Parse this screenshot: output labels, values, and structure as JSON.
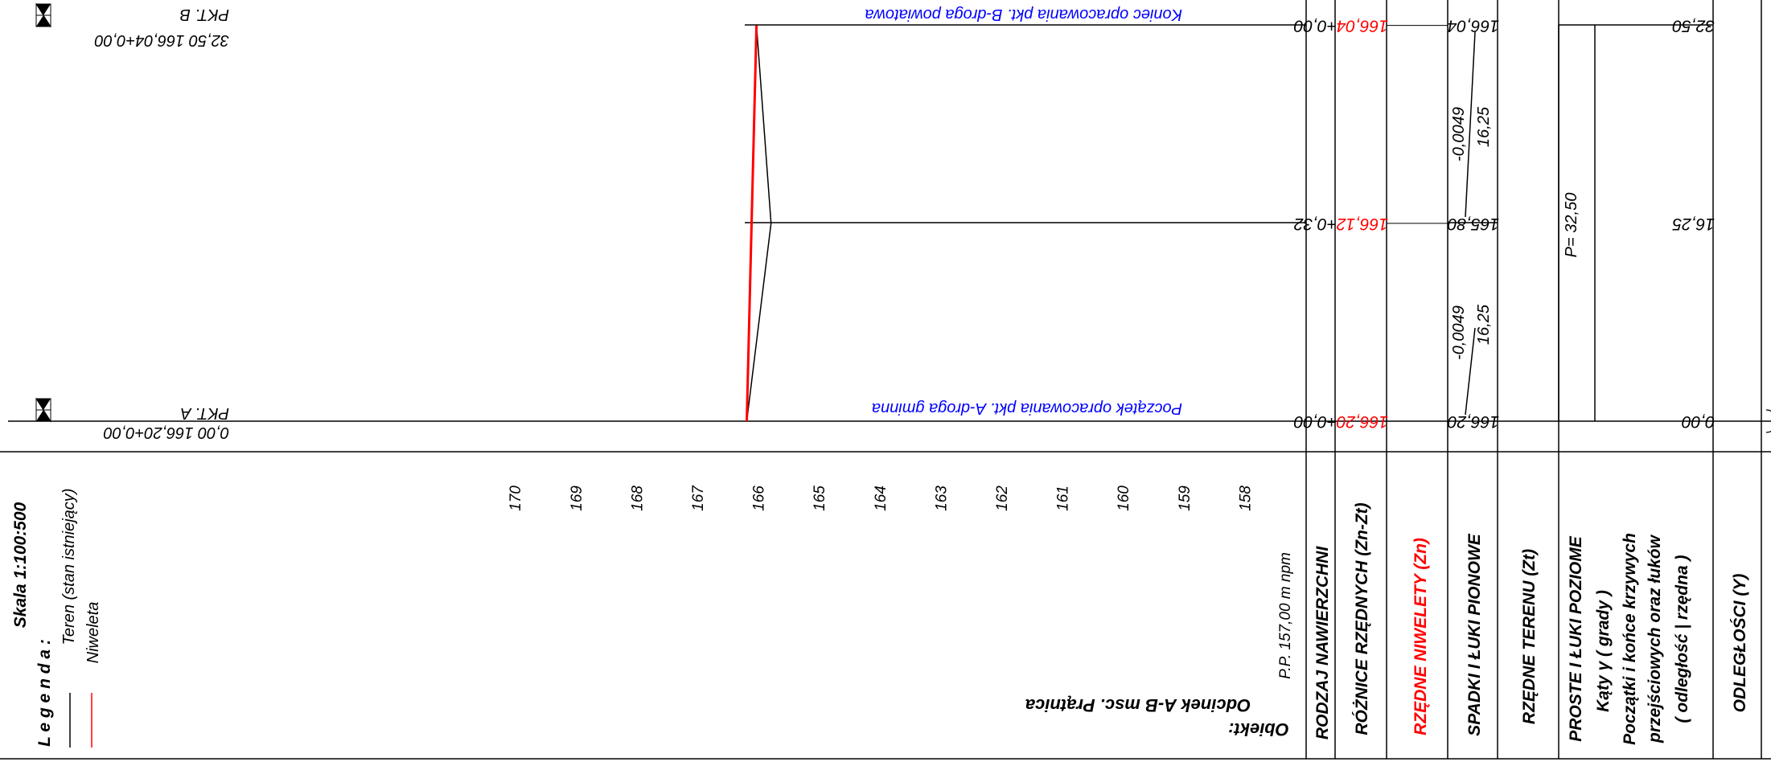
{
  "legend": {
    "scale_label": "Skala 1:100:500",
    "title": "L e g e n d a :",
    "terrain_label": "Teren (stan istniejący)",
    "grade_label": "Niweleta"
  },
  "object": {
    "label": "Obiekt:",
    "name": "Odcinek A-B msc. Prątnica"
  },
  "datum": {
    "label": "P.P.  157,00  m  npm"
  },
  "elevation_axis": {
    "unit": "npm",
    "ticks": [
      "158",
      "159",
      "160",
      "161",
      "162",
      "163",
      "164",
      "165",
      "166",
      "167",
      "168",
      "169",
      "170"
    ]
  },
  "table_headers": {
    "surface_type": "RODZAJ NAWIERZCHNI",
    "differences": "RÓŻNICE RZĘDNYCH (Zn-Zt)",
    "grade_elev": "RZĘDNE NIWELETY (Zn)",
    "slopes": "SPADKI I ŁUKI PIONOWE",
    "terrain_elev": "RZĘDNE TERENU (Zt)",
    "horizontal_1": "PROSTE I ŁUKI POZIOME",
    "horizontal_2": "Kąty γ  ( grady )",
    "horizontal_3": "Początki i końce krzywych",
    "horizontal_4": "przejściowych oraz łuków",
    "horizontal_5": "( odległość | rzędna )",
    "distances": "ODLEGŁOŚCI (Y)"
  },
  "stations": [
    {
      "distance": "0,00",
      "terrain": "166,20",
      "grade": "166,20",
      "difference": "+0,00"
    },
    {
      "distance": "16,25",
      "terrain": "165,80",
      "grade": "166,12",
      "difference": "+0,32"
    },
    {
      "distance": "32,50",
      "terrain": "166,04",
      "grade": "166,04",
      "difference": "+0,00"
    }
  ],
  "slopes": [
    {
      "gradient": "-0,0049",
      "length": "16,25"
    },
    {
      "gradient": "-0,0049",
      "length": "16,25"
    }
  ],
  "horizontal": {
    "straight_label": "P= 32,50"
  },
  "points": {
    "a_name": "PKT. A",
    "a_info": "0,00   166,20+0,00",
    "a_note": "Początek opracowania pkt. A-droga gminna",
    "b_name": "PKT. B",
    "b_info": "32,50   166,04+0,00",
    "b_note": "Koniec opracowania pkt. B-droga powiatowa"
  },
  "colors": {
    "grade": "#ff0000",
    "terrain": "#000000",
    "notes": "#0000ff"
  },
  "chart_data": {
    "type": "line",
    "xlabel": "",
    "ylabel": "",
    "x": [
      0,
      16.25,
      32.5
    ],
    "ylim": [
      157,
      170
    ],
    "series": [
      {
        "name": "Teren (stan istniejący)",
        "values": [
          166.2,
          165.8,
          166.04
        ]
      },
      {
        "name": "Niweleta",
        "values": [
          166.2,
          166.12,
          166.04
        ]
      }
    ]
  }
}
